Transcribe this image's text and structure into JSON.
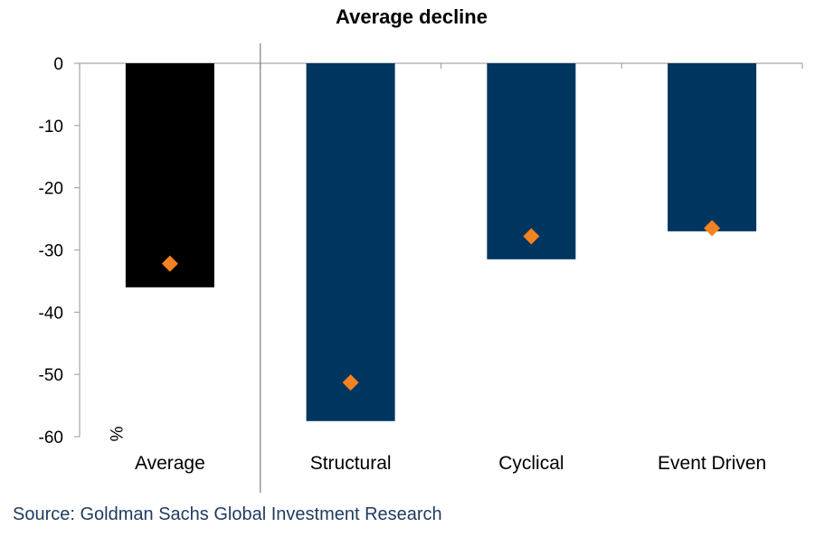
{
  "chart_data": {
    "type": "bar",
    "title": "Average decline",
    "unit_label": "%",
    "categories": [
      "Average",
      "Structural",
      "Cyclical",
      "Event Driven"
    ],
    "series": [
      {
        "kind": "bar",
        "values": [
          -36,
          -57.5,
          -31.5,
          -27
        ]
      },
      {
        "kind": "marker",
        "values": [
          -32.2,
          -51.3,
          -27.8,
          -26.5
        ]
      }
    ],
    "bar_colors": [
      "#000000",
      "#003560",
      "#003560",
      "#003560"
    ],
    "marker_color": "#F58220",
    "ylim": [
      -60,
      0
    ],
    "yticks": [
      0,
      -10,
      -20,
      -30,
      -40,
      -50,
      -60
    ],
    "xlabel": "",
    "ylabel": "",
    "grid": false
  },
  "source": "Source: Goldman Sachs Global Investment Research"
}
